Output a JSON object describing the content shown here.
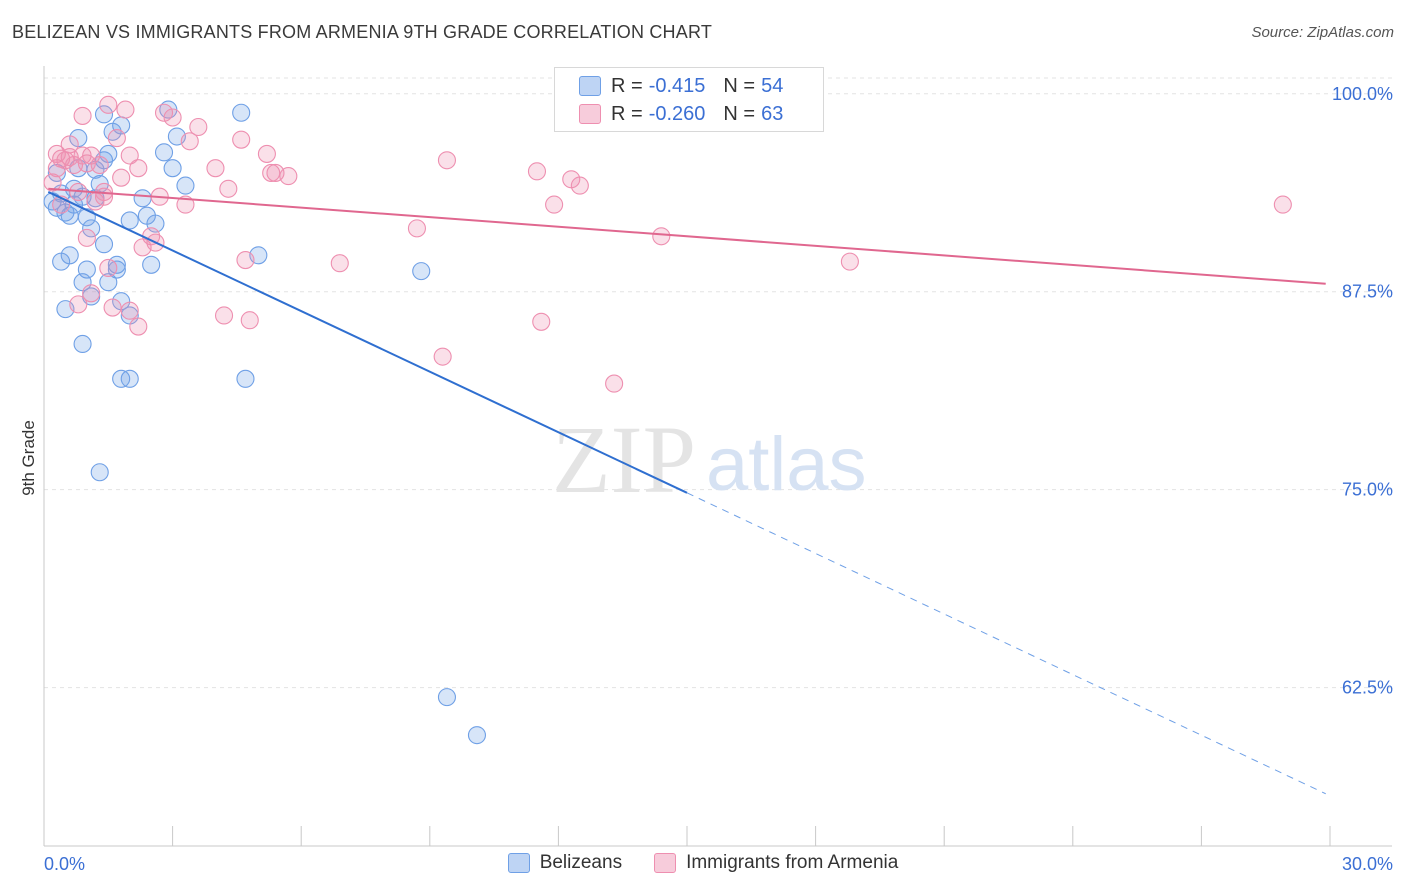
{
  "header": {
    "title": "BELIZEAN VS IMMIGRANTS FROM ARMENIA 9TH GRADE CORRELATION CHART",
    "source": "Source: ZipAtlas.com"
  },
  "watermark": {
    "zip": "ZIP",
    "atlas": "atlas"
  },
  "legend": {
    "rows": [
      {
        "r_label": "R = ",
        "r_value": "-0.415",
        "n_label": "N = ",
        "n_value": "54",
        "color": "#6fa0e6"
      },
      {
        "r_label": "R = ",
        "r_value": "-0.260",
        "n_label": "N = ",
        "n_value": "63",
        "color": "#ee8fb0"
      }
    ]
  },
  "bottom_legend": [
    {
      "label": "Belizeans",
      "color": "#6fa0e6"
    },
    {
      "label": "Immigrants from Armenia",
      "color": "#ee8fb0"
    }
  ],
  "chart_data": {
    "type": "scatter",
    "title": "BELIZEAN VS IMMIGRANTS FROM ARMENIA 9TH GRADE CORRELATION CHART",
    "xlabel": "",
    "ylabel": "9th Grade",
    "xlim": [
      0,
      30
    ],
    "ylim": [
      52.5,
      101.5
    ],
    "x_tick_labels": [
      "0.0%",
      "30.0%"
    ],
    "y_ticks": [
      100.0,
      87.5,
      75.0,
      62.5
    ],
    "y_tick_labels": [
      "100.0%",
      "87.5%",
      "75.0%",
      "62.5%"
    ],
    "grid": true,
    "legend_position": "top-center",
    "series": [
      {
        "name": "Belizeans",
        "color": "#6fa0e6",
        "r": -0.415,
        "n": 54,
        "trend": {
          "x0": 0.1,
          "y0": 93.8,
          "x1": 15.0,
          "y1": 74.8,
          "x_dash_end": 29.9,
          "y_dash_end": 55.8
        },
        "points": [
          [
            0.2,
            93.2
          ],
          [
            0.3,
            92.8
          ],
          [
            0.4,
            93.7
          ],
          [
            0.5,
            92.5
          ],
          [
            0.6,
            92.3
          ],
          [
            0.7,
            93.0
          ],
          [
            0.8,
            95.3
          ],
          [
            0.9,
            93.5
          ],
          [
            1.0,
            92.2
          ],
          [
            1.1,
            91.5
          ],
          [
            1.2,
            93.4
          ],
          [
            1.3,
            94.3
          ],
          [
            1.4,
            95.8
          ],
          [
            1.5,
            96.2
          ],
          [
            1.6,
            97.6
          ],
          [
            1.4,
            98.7
          ],
          [
            1.8,
            98.0
          ],
          [
            2.0,
            92.0
          ],
          [
            2.3,
            93.4
          ],
          [
            2.5,
            89.2
          ],
          [
            2.6,
            91.8
          ],
          [
            0.6,
            89.8
          ],
          [
            1.0,
            88.9
          ],
          [
            1.5,
            88.1
          ],
          [
            0.4,
            89.4
          ],
          [
            0.5,
            86.4
          ],
          [
            1.1,
            87.2
          ],
          [
            1.8,
            86.9
          ],
          [
            2.0,
            86.0
          ],
          [
            1.7,
            89.2
          ],
          [
            0.9,
            84.2
          ],
          [
            1.8,
            82.0
          ],
          [
            2.0,
            82.0
          ],
          [
            0.9,
            88.1
          ],
          [
            1.4,
            90.5
          ],
          [
            2.8,
            96.3
          ],
          [
            3.1,
            97.3
          ],
          [
            3.3,
            94.2
          ],
          [
            4.6,
            98.8
          ],
          [
            5.0,
            89.8
          ],
          [
            3.0,
            95.3
          ],
          [
            4.7,
            82.0
          ],
          [
            8.8,
            88.8
          ],
          [
            1.3,
            76.1
          ],
          [
            9.4,
            61.9
          ],
          [
            10.1,
            59.5
          ],
          [
            12.2,
            98.9
          ],
          [
            2.9,
            99.0
          ],
          [
            0.8,
            97.2
          ],
          [
            1.2,
            95.2
          ],
          [
            0.3,
            95.0
          ],
          [
            0.7,
            94.0
          ],
          [
            1.7,
            88.9
          ],
          [
            2.4,
            92.3
          ]
        ]
      },
      {
        "name": "Immigrants from Armenia",
        "color": "#ee8fb0",
        "r": -0.26,
        "n": 63,
        "trend": {
          "x0": 0.1,
          "y0": 94.0,
          "x1": 29.9,
          "y1": 88.0
        },
        "points": [
          [
            0.2,
            94.4
          ],
          [
            0.3,
            95.3
          ],
          [
            0.4,
            95.9
          ],
          [
            0.5,
            95.8
          ],
          [
            0.6,
            96.8
          ],
          [
            0.7,
            95.5
          ],
          [
            0.8,
            93.8
          ],
          [
            0.9,
            98.6
          ],
          [
            1.0,
            95.6
          ],
          [
            1.1,
            96.1
          ],
          [
            1.2,
            93.2
          ],
          [
            1.3,
            95.5
          ],
          [
            1.4,
            93.5
          ],
          [
            1.5,
            99.3
          ],
          [
            1.7,
            97.2
          ],
          [
            1.9,
            99.0
          ],
          [
            2.0,
            96.1
          ],
          [
            2.2,
            95.3
          ],
          [
            2.3,
            90.3
          ],
          [
            2.6,
            90.6
          ],
          [
            2.8,
            98.8
          ],
          [
            3.3,
            93.0
          ],
          [
            3.4,
            97.0
          ],
          [
            3.6,
            97.9
          ],
          [
            4.0,
            95.3
          ],
          [
            4.3,
            94.0
          ],
          [
            4.6,
            97.1
          ],
          [
            4.7,
            89.5
          ],
          [
            5.2,
            96.2
          ],
          [
            5.4,
            95.0
          ],
          [
            5.7,
            94.8
          ],
          [
            6.9,
            89.3
          ],
          [
            8.7,
            91.5
          ],
          [
            9.3,
            83.4
          ],
          [
            9.4,
            95.8
          ],
          [
            11.5,
            95.1
          ],
          [
            11.6,
            85.6
          ],
          [
            11.9,
            93.0
          ],
          [
            12.3,
            94.6
          ],
          [
            12.5,
            94.2
          ],
          [
            13.3,
            81.7
          ],
          [
            14.4,
            91.0
          ],
          [
            18.8,
            89.4
          ],
          [
            28.9,
            93.0
          ],
          [
            1.6,
            86.5
          ],
          [
            2.0,
            86.3
          ],
          [
            2.2,
            85.3
          ],
          [
            4.2,
            86.0
          ],
          [
            4.8,
            85.7
          ],
          [
            0.8,
            86.7
          ],
          [
            1.1,
            87.4
          ],
          [
            1.4,
            93.8
          ],
          [
            2.7,
            93.5
          ],
          [
            0.4,
            93.0
          ],
          [
            0.6,
            96.0
          ],
          [
            1.8,
            94.7
          ],
          [
            3.0,
            98.5
          ],
          [
            1.0,
            90.9
          ],
          [
            0.9,
            96.1
          ],
          [
            1.5,
            89.0
          ],
          [
            2.5,
            91.0
          ],
          [
            0.3,
            96.2
          ],
          [
            5.3,
            95.0
          ]
        ]
      }
    ]
  }
}
